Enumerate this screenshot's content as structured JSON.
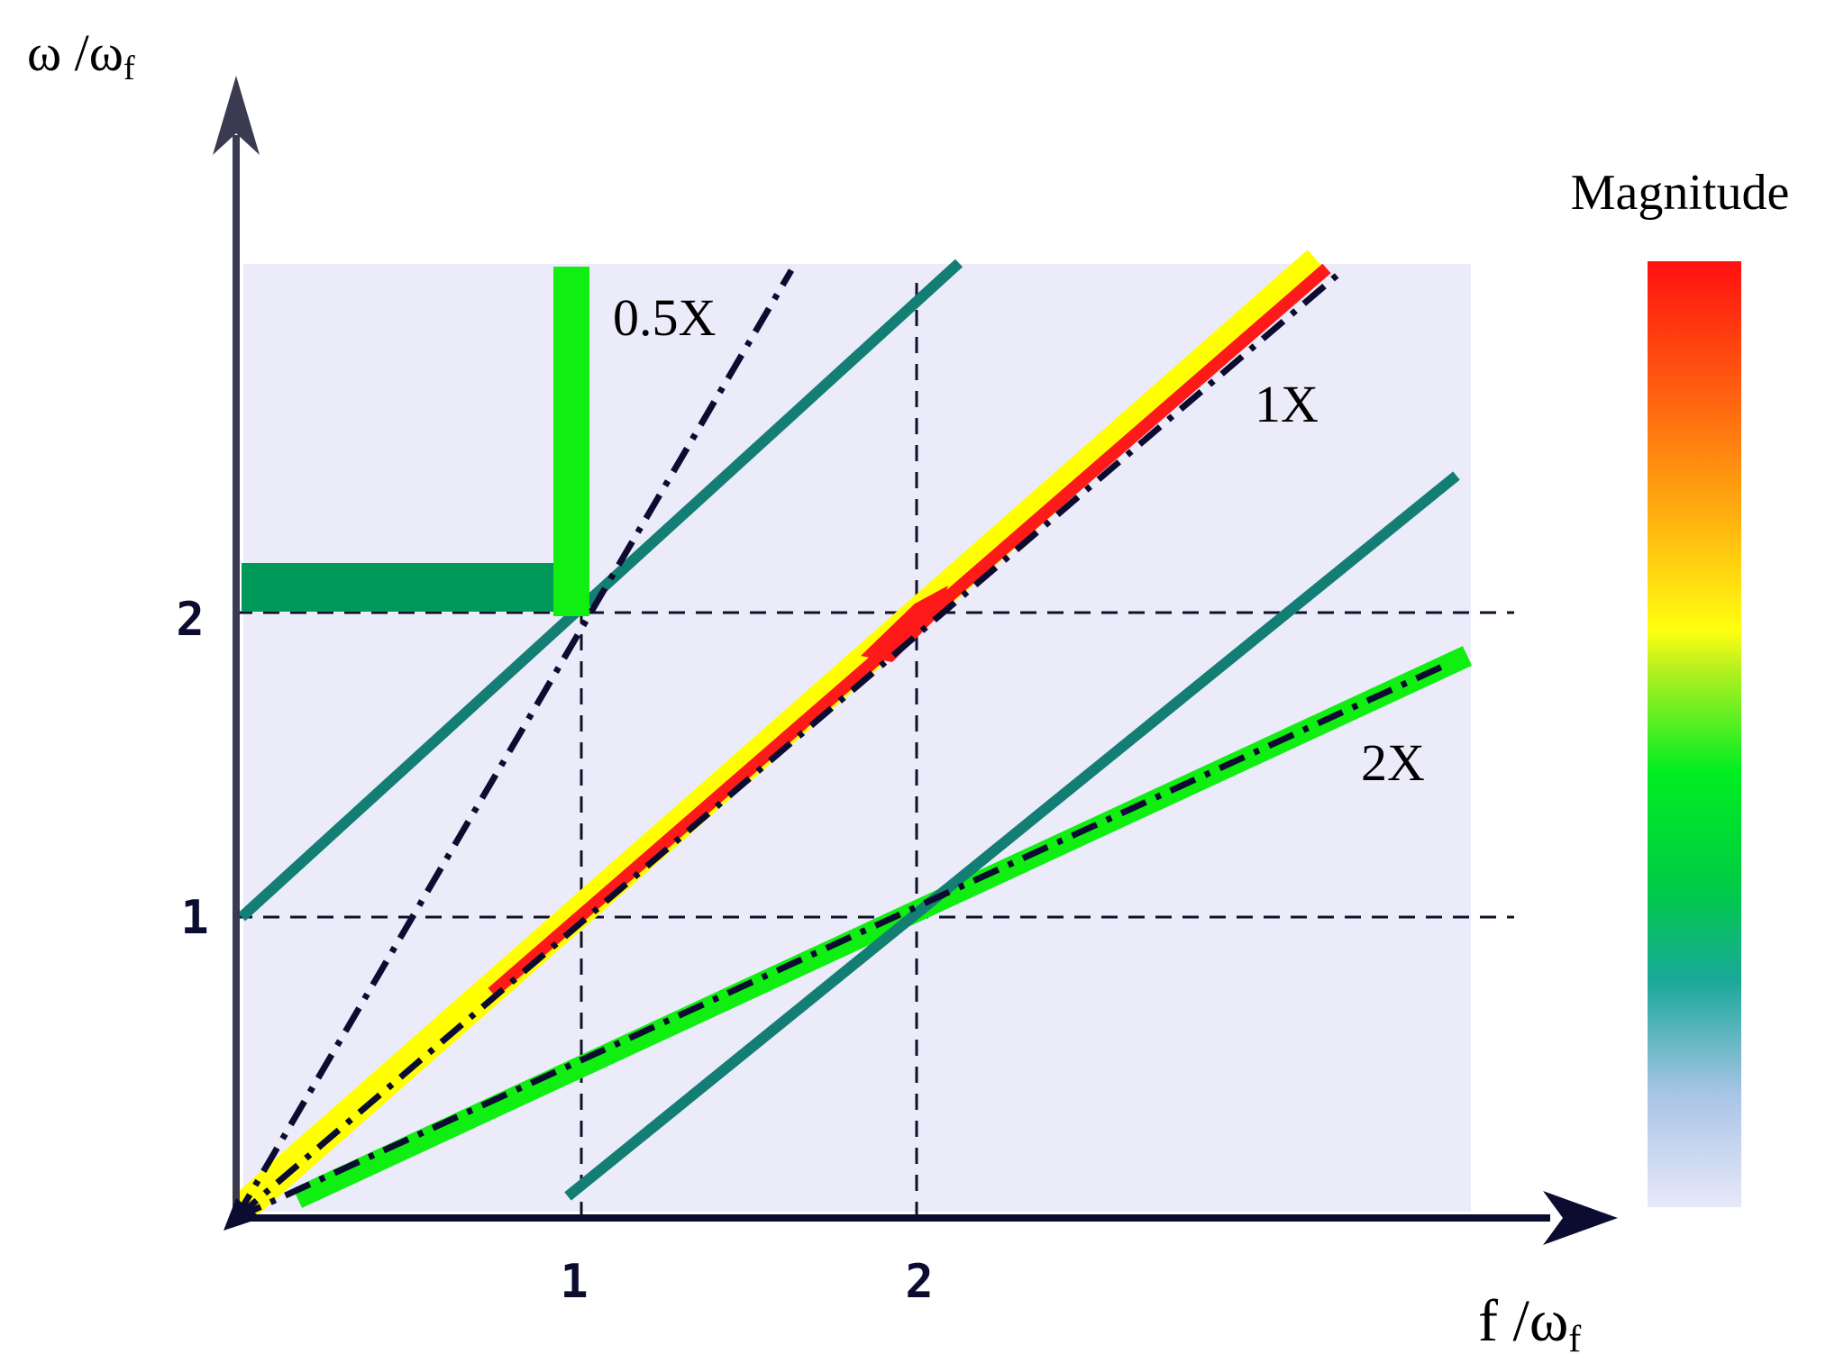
{
  "axes": {
    "y_label_main": "ω /ω",
    "y_label_sub": "f",
    "x_label_main": "f /ω",
    "x_label_sub": "f",
    "x_ticks": [
      "1",
      "2"
    ],
    "y_ticks": [
      "1",
      "2"
    ]
  },
  "lines": {
    "half_x": "0.5X",
    "one_x": "1X",
    "two_x": "2X"
  },
  "colorbar": {
    "title": "Magnitude",
    "stops": [
      "#e8e8fa",
      "#a8c4e6",
      "#1aa89a",
      "#00cc44",
      "#00ee22",
      "#b8f020",
      "#ffff10",
      "#ffb010",
      "#ff6010",
      "#ff1010"
    ]
  },
  "colors": {
    "panel_bg": "#ebebfa",
    "axis": "#3a3a50",
    "teal": "#137e74",
    "dark_green_bar": "#00995a",
    "bright_green": "#11ee11",
    "yellow": "#ffff00",
    "red": "#ff1a1a",
    "navy": "#0c0c30"
  }
}
